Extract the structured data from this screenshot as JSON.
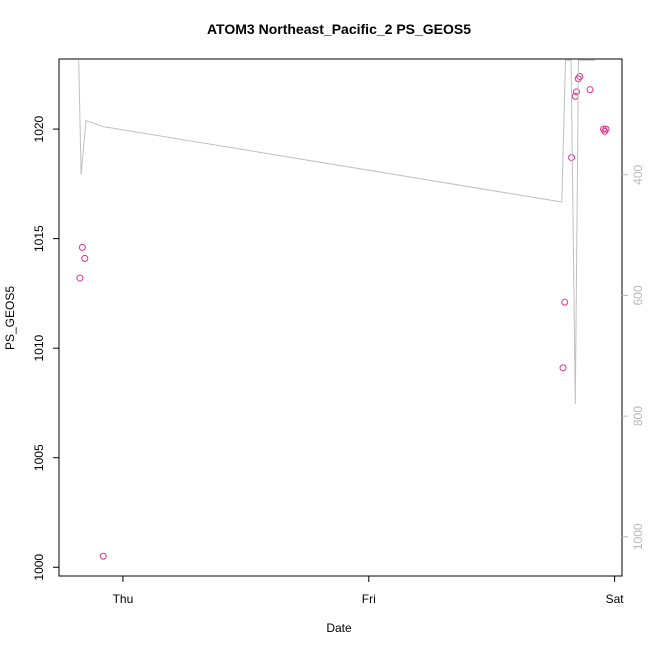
{
  "chart_data": {
    "type": "scatter",
    "title": "ATOM3 Northeast_Pacific_2 PS_GEOS5",
    "xlabel": "Date",
    "ylabel": "PS_GEOS5",
    "x_ticks": [
      "Thu",
      "Fri",
      "Sat"
    ],
    "xlim_days": [
      -0.26,
      2.03
    ],
    "ylim": [
      999.6,
      1023.2
    ],
    "y_ticks": [
      1000,
      1005,
      1010,
      1015,
      1020
    ],
    "y2_ticks": [
      400,
      600,
      800,
      1000
    ],
    "y2lim": [
      1065,
      208
    ],
    "grid": false,
    "series": [
      {
        "type": "points",
        "color": "#e0308a",
        "x_days": [
          -0.175,
          -0.155,
          -0.165,
          -0.08,
          1.79,
          1.797,
          1.825,
          1.84,
          1.845,
          1.852,
          1.858,
          1.9,
          1.955,
          1.96,
          1.965
        ],
        "y": [
          1013.2,
          1014.1,
          1014.6,
          1000.5,
          1009.1,
          1012.1,
          1018.7,
          1021.5,
          1021.7,
          1022.3,
          1022.4,
          1021.8,
          1020.0,
          1019.9,
          1020.0
        ]
      },
      {
        "type": "line",
        "axis": "right",
        "color": "#c0c0c0",
        "x_days": [
          -0.18,
          -0.17,
          -0.15,
          -0.08,
          1.785,
          1.8,
          1.823,
          1.84,
          1.853,
          1.86,
          1.92
        ],
        "y": [
          210,
          400,
          310,
          320,
          445,
          210,
          210,
          780,
          210,
          210,
          210
        ]
      }
    ],
    "colors": {
      "points": "#e0308a",
      "line": "#c0c0c0",
      "axis": "#000000",
      "right_axis": "#b8b8b8"
    }
  }
}
